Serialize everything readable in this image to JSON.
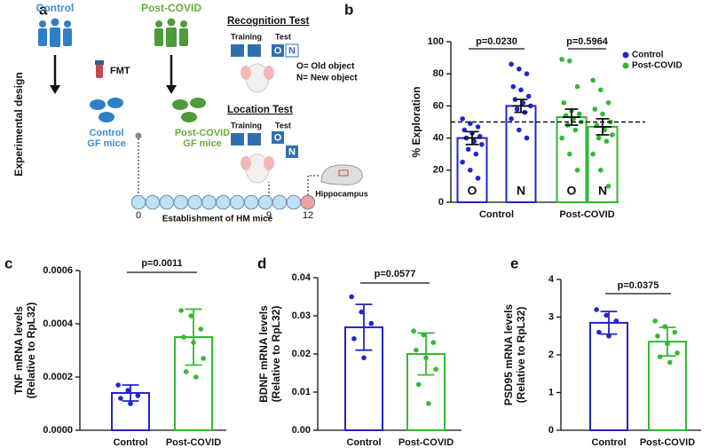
{
  "panel_a": {
    "label": "a",
    "control": "Control",
    "post_covid": "Post-COVID",
    "fmt": "FMT",
    "design": "Experimental design",
    "control_mice": [
      "Control",
      "GF mice"
    ],
    "post_mice": [
      "Post-COVID",
      "GF mice"
    ],
    "recognition": {
      "title": "Recognition Test",
      "training": "Training",
      "test": "Test",
      "o": "O",
      "n": "N"
    },
    "object_legend": [
      "O= Old object",
      "N= New object"
    ],
    "location": {
      "title": "Location Test",
      "training": "Training",
      "test": "Test",
      "o": "O",
      "n": "N"
    },
    "hippocampus": "Hippocampus",
    "timeline": {
      "ticks": [
        "0",
        "9",
        "12"
      ],
      "label": "Establishment of HM mice"
    }
  },
  "chart_data": [
    {
      "type": "bar",
      "panel": "b",
      "ylabel": [
        "% Exploration"
      ],
      "categories": [
        "O",
        "N",
        "O",
        "N"
      ],
      "group_labels": [
        "Control",
        "Post-COVID"
      ],
      "values": [
        40,
        60,
        53,
        47
      ],
      "errors": [
        4,
        4,
        5,
        5
      ],
      "colors": [
        "#2424c8",
        "#2424c8",
        "#33b833",
        "#33b833"
      ],
      "points": [
        [
          52,
          49,
          47,
          45,
          43,
          41,
          40,
          38,
          36,
          33,
          30,
          25,
          20,
          15
        ],
        [
          86,
          83,
          80,
          72,
          70,
          66,
          64,
          62,
          60,
          58,
          56,
          52,
          45,
          40
        ],
        [
          89,
          88,
          72,
          62,
          57,
          55,
          54,
          52,
          50,
          48,
          45,
          40,
          30,
          20
        ],
        [
          76,
          70,
          62,
          58,
          55,
          50,
          48,
          45,
          42,
          40,
          38,
          30,
          20,
          10
        ]
      ],
      "reference_line": 50,
      "annotations": [
        "p=0.0230",
        "p=0.5964"
      ],
      "legend": [
        {
          "name": "Control",
          "color": "#2424c8"
        },
        {
          "name": "Post-COVID",
          "color": "#33b833"
        }
      ],
      "ylim": [
        0,
        100
      ],
      "yticks": [
        0,
        20,
        40,
        60,
        80,
        100
      ]
    },
    {
      "type": "bar",
      "panel": "c",
      "ylabel": [
        "TNF mRNA levels",
        "(Relative to RpL32)"
      ],
      "categories": [
        "Control",
        "Post-COVID"
      ],
      "values": [
        0.00014,
        0.00035
      ],
      "errors": [
        3e-05,
        0.000105
      ],
      "colors": [
        "#2424c8",
        "#33b833"
      ],
      "points": [
        [
          0.00017,
          0.00015,
          0.00013,
          0.00012,
          0.0001
        ],
        [
          0.00045,
          0.00043,
          0.00038,
          0.00035,
          0.00033,
          0.00027,
          0.00022,
          0.0002
        ]
      ],
      "annotations": [
        "p=0.0011"
      ],
      "ylim": [
        0,
        0.0006
      ],
      "yticks": [
        {
          "value": 0,
          "label": "0.0000"
        },
        {
          "value": 0.0002,
          "label": "0.0002"
        },
        {
          "value": 0.0004,
          "label": "0.0004"
        },
        {
          "value": 0.0006,
          "label": "0.0006"
        }
      ]
    },
    {
      "type": "bar",
      "panel": "d",
      "ylabel": [
        "BDNF mRNA levels",
        "(Relative to RpL32)"
      ],
      "categories": [
        "Control",
        "Post-COVID"
      ],
      "values": [
        0.027,
        0.02
      ],
      "errors": [
        0.006,
        0.0055
      ],
      "colors": [
        "#2424c8",
        "#33b833"
      ],
      "points": [
        [
          0.035,
          0.031,
          0.028,
          0.024,
          0.019
        ],
        [
          0.026,
          0.025,
          0.023,
          0.021,
          0.019,
          0.016,
          0.012,
          0.007
        ]
      ],
      "annotations": [
        "p=0.0577"
      ],
      "ylim": [
        0,
        0.04
      ],
      "yticks": [
        {
          "value": 0,
          "label": "0.00"
        },
        {
          "value": 0.01,
          "label": "0.01"
        },
        {
          "value": 0.02,
          "label": "0.02"
        },
        {
          "value": 0.03,
          "label": "0.03"
        },
        {
          "value": 0.04,
          "label": "0.04"
        }
      ]
    },
    {
      "type": "bar",
      "panel": "e",
      "ylabel": [
        "PSD95 mRNA levels",
        "(Relative to RpL32)"
      ],
      "categories": [
        "Control",
        "Post-COVID"
      ],
      "values": [
        2.85,
        2.35
      ],
      "errors": [
        0.3,
        0.38
      ],
      "colors": [
        "#2424c8",
        "#33b833"
      ],
      "points": [
        [
          3.2,
          3.05,
          2.9,
          2.6,
          2.5
        ],
        [
          2.9,
          2.75,
          2.6,
          2.5,
          2.3,
          2.05,
          1.95,
          1.8
        ]
      ],
      "annotations": [
        "p=0.0375"
      ],
      "ylim": [
        0,
        4
      ],
      "yticks": [
        0,
        1,
        2,
        3,
        4
      ]
    }
  ]
}
